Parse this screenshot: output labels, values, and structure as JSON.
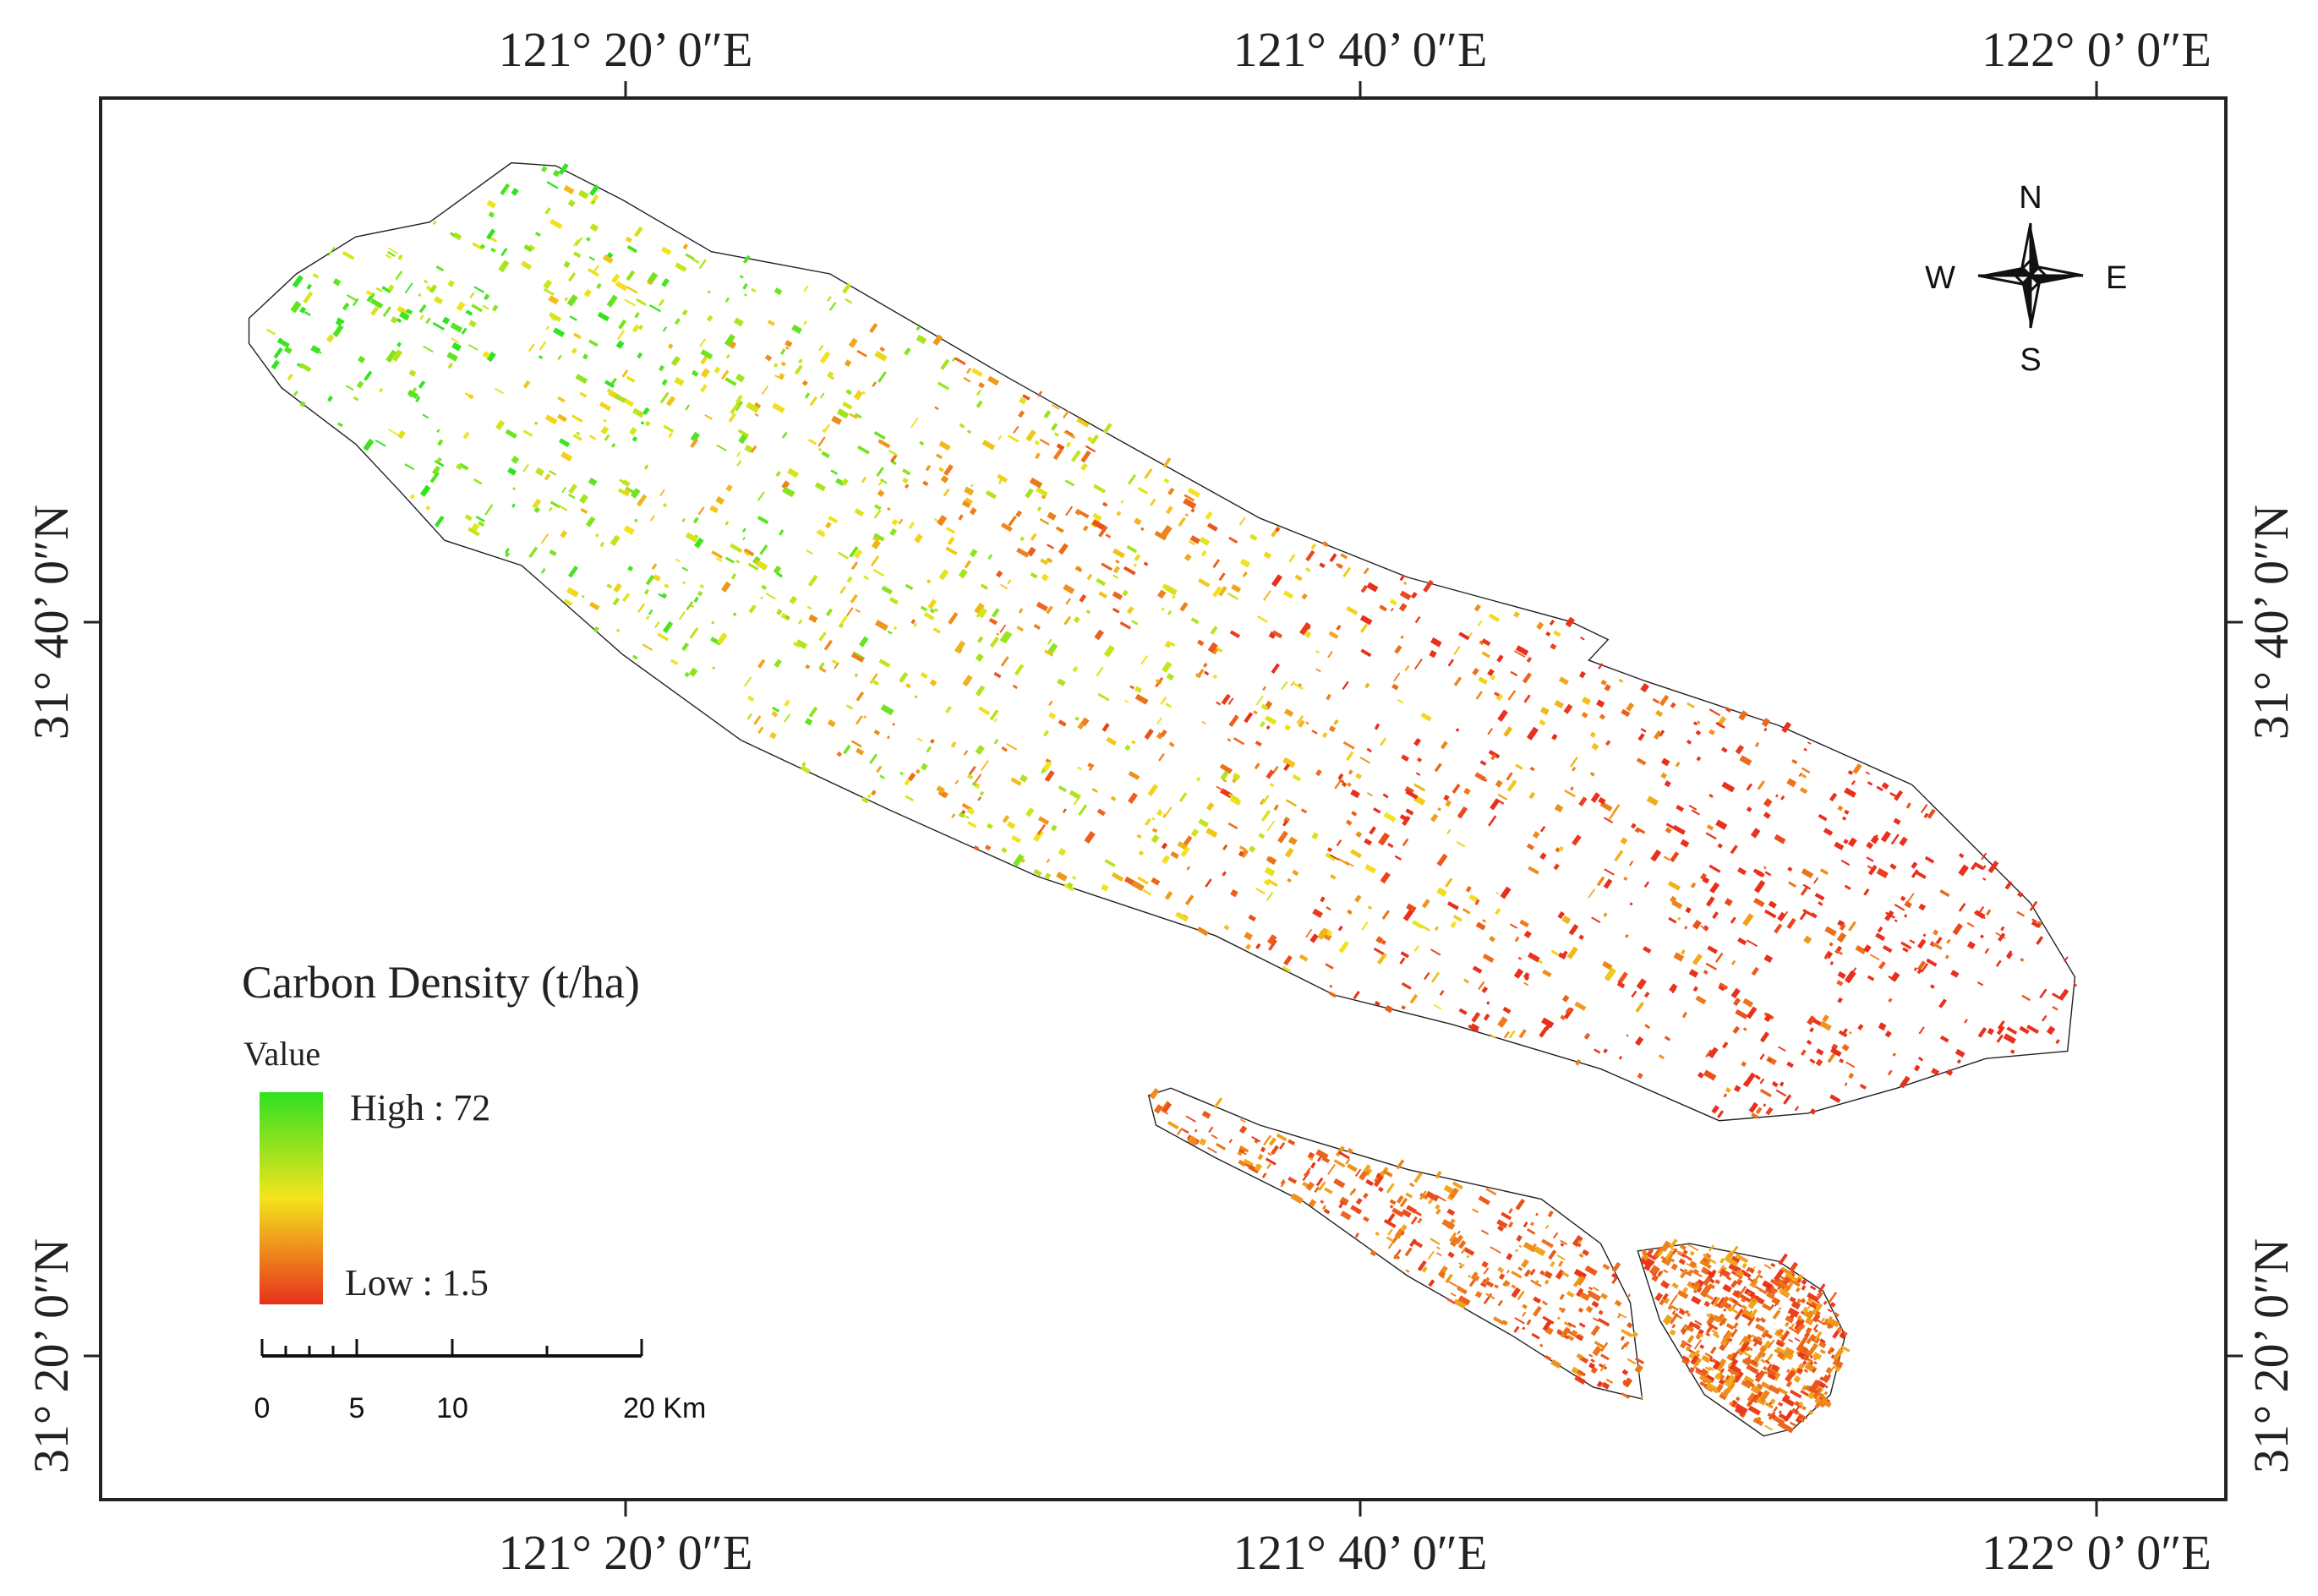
{
  "map": {
    "top_labels": [
      "121°  20’ 0″E",
      "121°  40’ 0″E",
      "122°  0’ 0″E"
    ],
    "bottom_labels": [
      "121°  20’ 0″E",
      "121°  40’ 0″E",
      "122°  0’ 0″E"
    ],
    "left_labels": [
      "31°  40’ 0″N",
      "31°  20’ 0″N"
    ],
    "right_labels": [
      "31°  40’ 0″N",
      "31°  20’ 0″N"
    ],
    "legend": {
      "title": "Carbon Density (t/ha)",
      "subtitle": "Value",
      "high": "High : 72",
      "low": "Low : 1.5"
    },
    "scale_bar": {
      "labels": [
        "0",
        "5",
        "10",
        "20 Km"
      ]
    },
    "compass": {
      "north": "N",
      "south": "S",
      "east": "E",
      "west": "W"
    }
  }
}
